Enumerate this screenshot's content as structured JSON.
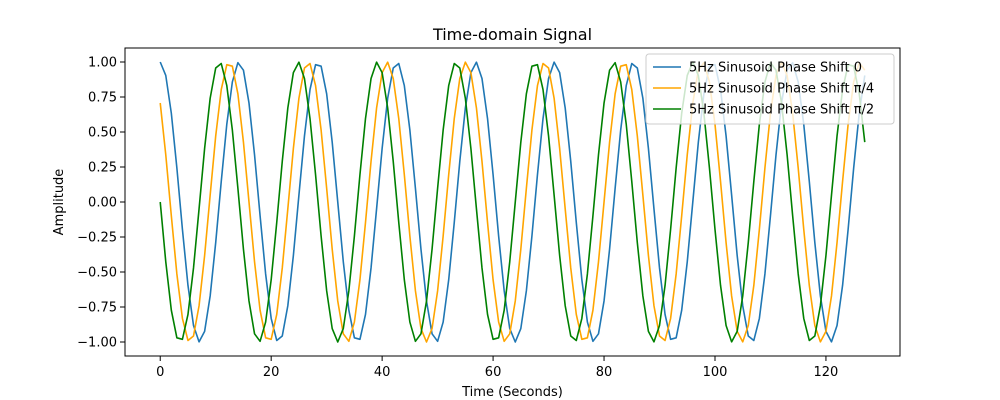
{
  "chart_data": {
    "type": "line",
    "title": "Time-domain Signal",
    "xlabel": "Time (Seconds)",
    "ylabel": "Amplitude",
    "xlim": [
      -6.35,
      133.35
    ],
    "ylim": [
      -1.1,
      1.1
    ],
    "xticks": [
      0,
      20,
      40,
      60,
      80,
      100,
      120
    ],
    "xtick_labels": [
      "0",
      "20",
      "40",
      "60",
      "80",
      "100",
      "120"
    ],
    "yticks": [
      -1.0,
      -0.75,
      -0.5,
      -0.25,
      0.0,
      0.25,
      0.5,
      0.75,
      1.0
    ],
    "ytick_labels": [
      "−1.00",
      "−0.75",
      "−0.50",
      "−0.25",
      "0.00",
      "0.25",
      "0.50",
      "0.75",
      "1.00"
    ],
    "grid": false,
    "legend_position": "upper right",
    "sample_count": 128,
    "cycles": 9,
    "series": [
      {
        "name": "5Hz Sinusoid Phase Shift 0",
        "color": "#1f77b4",
        "function": "cos",
        "phase_offset_rad": 0
      },
      {
        "name": "5Hz Sinusoid Phase Shift π/4",
        "color": "#ffa500",
        "function": "cos",
        "phase_offset_rad": 0.7853981633974483
      },
      {
        "name": "5Hz Sinusoid Phase Shift π/2",
        "color": "#008000",
        "function": "cos",
        "phase_offset_rad": 1.5707963267948966
      }
    ]
  }
}
